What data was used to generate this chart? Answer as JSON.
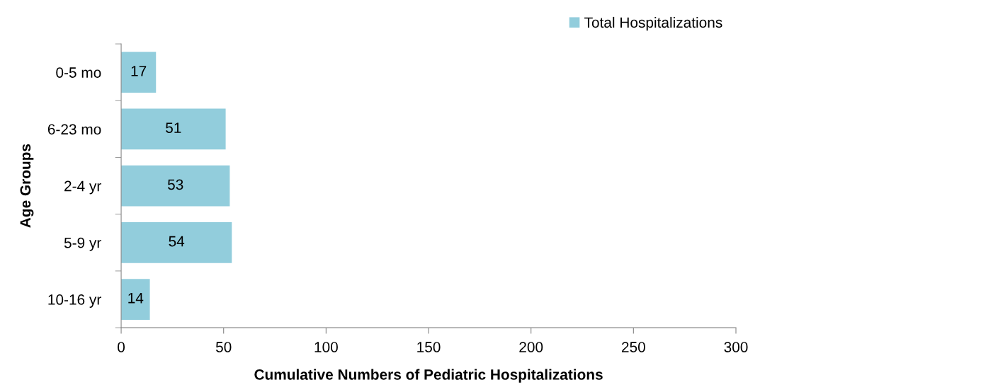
{
  "chart_data": {
    "type": "bar",
    "orientation": "horizontal",
    "xlabel": "Cumulative Numbers of Pediatric Hospitalizations",
    "ylabel": "Age Groups",
    "categories": [
      "0-5 mo",
      "6-23 mo",
      "2-4 yr",
      "5-9 yr",
      "10-16 yr"
    ],
    "series": [
      {
        "name": "Total Hospitalizations",
        "color": "#92cddc",
        "values": [
          17,
          51,
          53,
          54,
          14
        ]
      }
    ],
    "xlim": [
      0,
      300
    ],
    "xticks": [
      0,
      50,
      100,
      150,
      200,
      250,
      300
    ],
    "data_labels": true,
    "grid": false,
    "legend": "top right"
  }
}
